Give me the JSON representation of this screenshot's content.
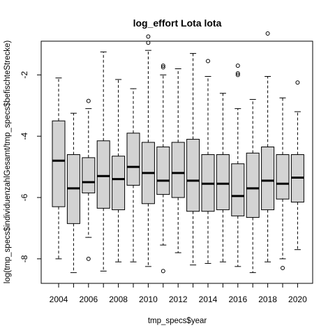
{
  "chart_data": {
    "type": "boxplot",
    "title": "log_effort Lota lota",
    "xlabel": "tmp_specs$year",
    "ylabel": "log(tmp_specs$individuenzahlGesamt/tmp_specs$befischteStrecke)",
    "ylim": [
      -8.8,
      -0.9
    ],
    "y_ticks": [
      -2,
      -4,
      -6,
      -8
    ],
    "x_tick_labels": [
      "2004",
      "2006",
      "2008",
      "2010",
      "2012",
      "2014",
      "2016",
      "2018",
      "2020"
    ],
    "box_fill": "#d3d3d3",
    "grid": false,
    "legend": "none",
    "boxes": [
      {
        "year": 2004,
        "whisker_low": -8.0,
        "q1": -6.3,
        "median": -4.8,
        "q3": -3.5,
        "whisker_high": -2.1,
        "outliers": []
      },
      {
        "year": 2005,
        "whisker_low": -8.45,
        "q1": -6.85,
        "median": -5.7,
        "q3": -4.6,
        "whisker_high": -3.25,
        "outliers": []
      },
      {
        "year": 2006,
        "whisker_low": -7.3,
        "q1": -5.85,
        "median": -5.5,
        "q3": -4.7,
        "whisker_high": -3.1,
        "outliers": [
          -2.85,
          -8.0
        ]
      },
      {
        "year": 2007,
        "whisker_low": -8.4,
        "q1": -6.35,
        "median": -5.3,
        "q3": -4.15,
        "whisker_high": -1.25,
        "outliers": []
      },
      {
        "year": 2008,
        "whisker_low": -8.1,
        "q1": -6.4,
        "median": -5.4,
        "q3": -4.65,
        "whisker_high": -2.15,
        "outliers": []
      },
      {
        "year": 2009,
        "whisker_low": -8.1,
        "q1": -5.6,
        "median": -5.0,
        "q3": -3.9,
        "whisker_high": -2.45,
        "outliers": []
      },
      {
        "year": 2010,
        "whisker_low": -8.25,
        "q1": -6.2,
        "median": -5.2,
        "q3": -4.2,
        "whisker_high": -1.2,
        "outliers": [
          -0.75,
          -0.95
        ]
      },
      {
        "year": 2011,
        "whisker_low": -7.55,
        "q1": -5.9,
        "median": -5.45,
        "q3": -4.35,
        "whisker_high": -2.0,
        "outliers": [
          -1.7,
          -1.75,
          -8.4
        ]
      },
      {
        "year": 2012,
        "whisker_low": -7.8,
        "q1": -6.0,
        "median": -5.2,
        "q3": -4.2,
        "whisker_high": -1.8,
        "outliers": []
      },
      {
        "year": 2013,
        "whisker_low": -8.2,
        "q1": -6.45,
        "median": -5.45,
        "q3": -4.1,
        "whisker_high": -1.3,
        "outliers": []
      },
      {
        "year": 2014,
        "whisker_low": -8.15,
        "q1": -6.45,
        "median": -5.55,
        "q3": -4.6,
        "whisker_high": -2.05,
        "outliers": [
          -1.55
        ]
      },
      {
        "year": 2015,
        "whisker_low": -8.1,
        "q1": -6.4,
        "median": -5.55,
        "q3": -4.6,
        "whisker_high": -2.6,
        "outliers": []
      },
      {
        "year": 2016,
        "whisker_low": -8.25,
        "q1": -6.6,
        "median": -5.95,
        "q3": -4.9,
        "whisker_high": -3.1,
        "outliers": [
          -1.7,
          -1.95,
          -2.0
        ]
      },
      {
        "year": 2017,
        "whisker_low": -8.45,
        "q1": -6.65,
        "median": -5.7,
        "q3": -4.55,
        "whisker_high": -2.8,
        "outliers": []
      },
      {
        "year": 2018,
        "whisker_low": -8.1,
        "q1": -6.4,
        "median": -5.45,
        "q3": -4.35,
        "whisker_high": -2.05,
        "outliers": [
          -0.65
        ]
      },
      {
        "year": 2019,
        "whisker_low": -8.0,
        "q1": -6.05,
        "median": -5.55,
        "q3": -4.6,
        "whisker_high": -2.75,
        "outliers": [
          -8.3
        ]
      },
      {
        "year": 2020,
        "whisker_low": -7.7,
        "q1": -6.15,
        "median": -5.35,
        "q3": -4.6,
        "whisker_high": -3.2,
        "outliers": [
          -2.25
        ]
      }
    ]
  }
}
